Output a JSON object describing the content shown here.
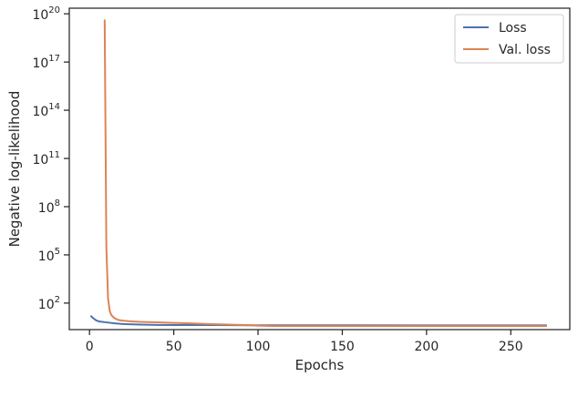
{
  "chart_data": {
    "type": "line",
    "title": "",
    "xlabel": "Epochs",
    "ylabel": "Negative log-likelihood",
    "xlim": [
      -12,
      285
    ],
    "ylim_log10": [
      0.35,
      20.35
    ],
    "yscale": "log",
    "x_ticks": [
      0,
      50,
      100,
      150,
      200,
      250
    ],
    "y_ticks": [
      {
        "exp": 2,
        "base": "10",
        "sup": "2"
      },
      {
        "exp": 5,
        "base": "10",
        "sup": "5"
      },
      {
        "exp": 8,
        "base": "10",
        "sup": "8"
      },
      {
        "exp": 11,
        "base": "10",
        "sup": "11"
      },
      {
        "exp": 14,
        "base": "10",
        "sup": "14"
      },
      {
        "exp": 17,
        "base": "10",
        "sup": "17"
      },
      {
        "exp": 20,
        "base": "10",
        "sup": "20"
      }
    ],
    "grid": false,
    "legend_position": "top-right",
    "series": [
      {
        "name": "Loss",
        "color": "#4c72b0",
        "x": [
          1,
          2,
          4,
          6,
          10,
          15,
          20,
          30,
          40,
          50,
          75,
          100,
          150,
          200,
          250,
          271
        ],
        "y_log10": [
          1.18,
          1.08,
          0.92,
          0.85,
          0.8,
          0.74,
          0.7,
          0.66,
          0.64,
          0.63,
          0.63,
          0.62,
          0.62,
          0.61,
          0.61,
          0.61
        ]
      },
      {
        "name": "Val. loss",
        "color": "#dd8452",
        "x": [
          9,
          10,
          11,
          12,
          13,
          14,
          15,
          17,
          20,
          25,
          30,
          40,
          50,
          60,
          70,
          80,
          90,
          100,
          110,
          120,
          150,
          200,
          250,
          271
        ],
        "y_log10": [
          19.6,
          5.5,
          2.3,
          1.5,
          1.25,
          1.15,
          1.05,
          0.95,
          0.9,
          0.86,
          0.83,
          0.8,
          0.77,
          0.74,
          0.7,
          0.67,
          0.64,
          0.6,
          0.57,
          0.57,
          0.57,
          0.57,
          0.57,
          0.57
        ]
      }
    ]
  }
}
